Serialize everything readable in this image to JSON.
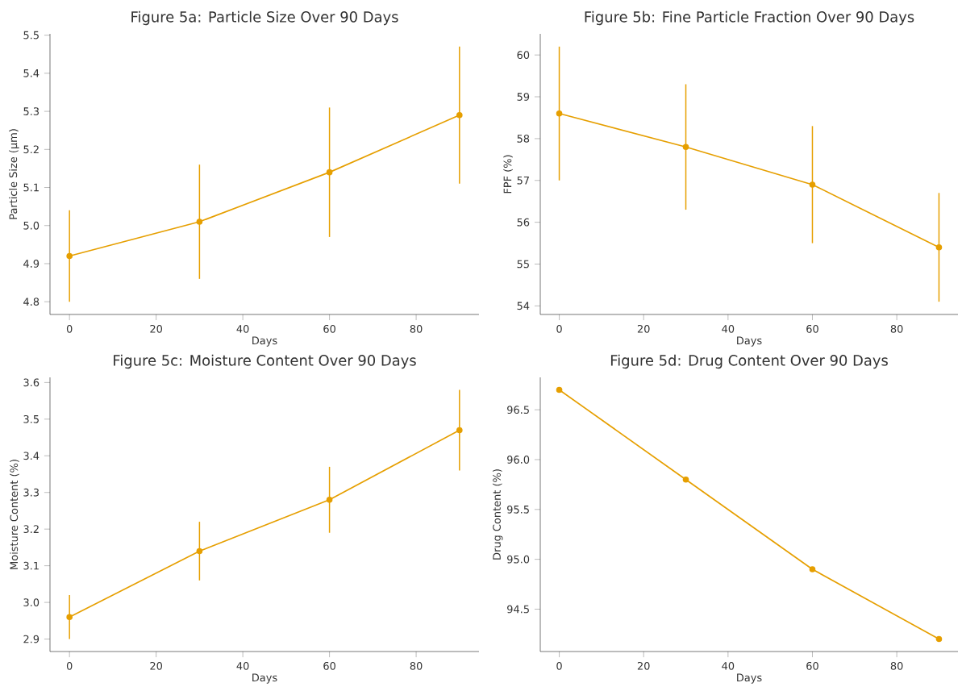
{
  "chart_data": [
    {
      "type": "line",
      "title": "Figure 5a: Particle Size Over 90 Days",
      "xlabel": "Days",
      "ylabel": "Particle Size (µm)",
      "x": [
        0,
        30,
        60,
        90
      ],
      "values": [
        4.92,
        5.01,
        5.14,
        5.29
      ],
      "errors": [
        0.12,
        0.15,
        0.17,
        0.18
      ],
      "color": "#e69f00",
      "marker": "circle",
      "line_style": "solid",
      "xlim": [
        -4.5,
        94.5
      ],
      "xticks": [
        0,
        20,
        40,
        60,
        80
      ],
      "ylim": [
        4.7665,
        5.5035
      ],
      "yticks": [
        4.8,
        4.9,
        {
          "value": 5,
          "label": "5.0"
        },
        5.1,
        5.2,
        5.3,
        5.4,
        5.5
      ]
    },
    {
      "type": "line",
      "title": "Figure 5b: Fine Particle Fraction Over 90 Days",
      "xlabel": "Days",
      "ylabel": "FPF (%)",
      "x": [
        0,
        30,
        60,
        90
      ],
      "values": [
        58.6,
        57.8,
        56.9,
        55.4
      ],
      "errors": [
        1.6,
        1.5,
        1.4,
        1.3
      ],
      "color": "#e69f00",
      "marker": "circle",
      "line_style": "solid",
      "xlim": [
        -4.5,
        94.5
      ],
      "xticks": [
        0,
        20,
        40,
        60,
        80
      ],
      "ylim": [
        53.795,
        60.505
      ],
      "yticks": [
        54,
        55,
        56,
        57,
        58,
        59,
        60
      ]
    },
    {
      "type": "line",
      "title": "Figure 5c: Moisture Content Over 90 Days",
      "xlabel": "Days",
      "ylabel": "Moisture Content (%)",
      "x": [
        0,
        30,
        60,
        90
      ],
      "values": [
        2.96,
        3.14,
        3.28,
        3.47
      ],
      "errors": [
        0.06,
        0.08,
        0.09,
        0.11
      ],
      "color": "#e69f00",
      "marker": "circle",
      "line_style": "solid",
      "xlim": [
        -4.5,
        94.5
      ],
      "xticks": [
        0,
        20,
        40,
        60,
        80
      ],
      "ylim": [
        2.866,
        3.614
      ],
      "yticks": [
        2.9,
        {
          "value": 3,
          "label": "3.0"
        },
        3.1,
        3.2,
        3.3,
        3.4,
        3.5,
        3.6
      ]
    },
    {
      "type": "line",
      "title": "Figure 5d: Drug Content Over 90 Days",
      "xlabel": "Days",
      "ylabel": "Drug Content (%)",
      "x": [
        0,
        30,
        60,
        90
      ],
      "values": [
        96.7,
        95.8,
        94.9,
        94.2
      ],
      "color": "#e69f00",
      "marker": "circle",
      "line_style": "solid",
      "xlim": [
        -4.5,
        94.5
      ],
      "xticks": [
        0,
        20,
        40,
        60,
        80
      ],
      "ylim": [
        94.075,
        96.825
      ],
      "yticks": [
        94.5,
        {
          "value": 95,
          "label": "95.0"
        },
        95.5,
        {
          "value": 96,
          "label": "96.0"
        },
        96.5
      ]
    }
  ]
}
